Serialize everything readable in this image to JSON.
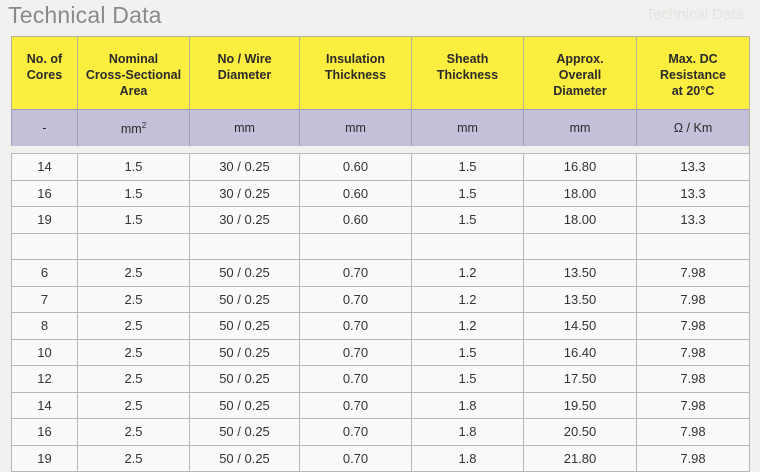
{
  "page": {
    "title": "Technical Data",
    "ghost_text": "Technical Data"
  },
  "table": {
    "headers": [
      "No. of\nCores",
      "Nominal\nCross-Sectional\nArea",
      "No / Wire\nDiameter",
      "Insulation\nThickness",
      "Sheath\nThickness",
      "Approx.\nOverall\nDiameter",
      "Max. DC\nResistance\nat 20°C"
    ],
    "units": [
      "-",
      "mm",
      "mm",
      "mm",
      "mm",
      "mm",
      "Ω / Km"
    ],
    "unit_superscript": "2",
    "rows": [
      [
        "14",
        "1.5",
        "30 / 0.25",
        "0.60",
        "1.5",
        "16.80",
        "13.3"
      ],
      [
        "16",
        "1.5",
        "30 / 0.25",
        "0.60",
        "1.5",
        "18.00",
        "13.3"
      ],
      [
        "19",
        "1.5",
        "30 / 0.25",
        "0.60",
        "1.5",
        "18.00",
        "13.3"
      ],
      [
        "",
        "",
        "",
        "",
        "",
        "",
        ""
      ],
      [
        "6",
        "2.5",
        "50 / 0.25",
        "0.70",
        "1.2",
        "13.50",
        "7.98"
      ],
      [
        "7",
        "2.5",
        "50 / 0.25",
        "0.70",
        "1.2",
        "13.50",
        "7.98"
      ],
      [
        "8",
        "2.5",
        "50 / 0.25",
        "0.70",
        "1.2",
        "14.50",
        "7.98"
      ],
      [
        "10",
        "2.5",
        "50 / 0.25",
        "0.70",
        "1.5",
        "16.40",
        "7.98"
      ],
      [
        "12",
        "2.5",
        "50 / 0.25",
        "0.70",
        "1.5",
        "17.50",
        "7.98"
      ],
      [
        "14",
        "2.5",
        "50 / 0.25",
        "0.70",
        "1.8",
        "19.50",
        "7.98"
      ],
      [
        "16",
        "2.5",
        "50 / 0.25",
        "0.70",
        "1.8",
        "20.50",
        "7.98"
      ],
      [
        "19",
        "2.5",
        "50 / 0.25",
        "0.70",
        "1.8",
        "21.80",
        "7.98"
      ]
    ]
  }
}
